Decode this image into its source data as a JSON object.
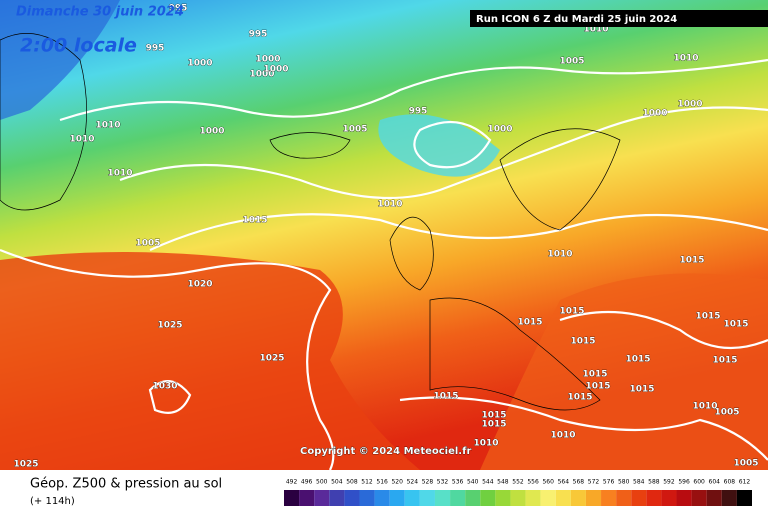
{
  "header": {
    "date": "Dimanche 30 juin 2024",
    "time": "2:00 locale",
    "run": "Run ICON 6 Z du Mardi 25 juin 2024"
  },
  "copyright": "Copyright © 2024 Meteociel.fr",
  "legend": {
    "title": "Géop. Z500 & pression au sol",
    "lead": "(+ 114h)"
  },
  "isobars": [
    "995",
    "995",
    "995",
    "1000",
    "1000",
    "1000",
    "1000",
    "1010",
    "1000",
    "1010",
    "1010",
    "1005",
    "995",
    "1000",
    "1005",
    "1010",
    "1000",
    "1000",
    "1010",
    "1015",
    "1010",
    "1005",
    "1020",
    "1025",
    "1025",
    "1030",
    "1010",
    "1015",
    "1015",
    "1015",
    "1015",
    "1015",
    "1015",
    "1015",
    "1015",
    "1015",
    "1015",
    "1015",
    "1015",
    "1015",
    "1010",
    "1005",
    "1015",
    "1015",
    "1010",
    "1010",
    "1025",
    "1005"
  ],
  "colorbar": {
    "ticks": [
      492,
      496,
      500,
      504,
      508,
      512,
      516,
      520,
      524,
      528,
      532,
      536,
      540,
      544,
      548,
      552,
      556,
      560,
      564,
      568,
      572,
      576,
      580,
      584,
      588,
      592,
      596,
      600,
      604,
      608,
      612
    ],
    "colors": [
      "#2a0040",
      "#4a1070",
      "#5a2a9a",
      "#4040b0",
      "#3050c8",
      "#2a6ad8",
      "#2a8ae8",
      "#2aa8f0",
      "#38c4f0",
      "#50d8e8",
      "#58e0c8",
      "#50d8a0",
      "#58d070",
      "#70d040",
      "#98d838",
      "#c0e040",
      "#e0e850",
      "#f8f070",
      "#f8e050",
      "#f8c838",
      "#f8a828",
      "#f88020",
      "#f06018",
      "#e84010",
      "#e02810",
      "#d01810",
      "#b80c10",
      "#981010",
      "#701010",
      "#401010",
      "#000000"
    ]
  }
}
